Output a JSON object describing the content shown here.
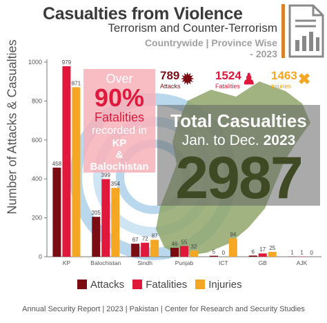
{
  "header": {
    "title": "Casualties from Violence",
    "subtitle": "Terrorism and Counter-Terrorism",
    "scope_line1": "Countrywide | Province Wise",
    "scope_line2": "- 2023"
  },
  "stats": [
    {
      "value": "789",
      "label": "Attacks",
      "color": "#7a0c14"
    },
    {
      "value": "1524",
      "label": "Fatalities",
      "color": "#e0183b"
    },
    {
      "value": "1463",
      "label": "Injuries",
      "color": "#f5a623"
    }
  ],
  "highlight": {
    "line1": "Over",
    "line2": "90%",
    "line3": "Fatalities",
    "line4": "recorded in",
    "line5": "KP",
    "line6": "&",
    "line7": "Balochistan"
  },
  "total": {
    "title": "Total Casualties",
    "period_prefix": "Jan. to Dec.",
    "period_year": "2023",
    "value": "2987"
  },
  "footer": "Annual Security Report | 2023 | Pakistan | Center for Research and Security Studies",
  "colors": {
    "attacks": "#7a0c14",
    "fatalities": "#e0183b",
    "injuries": "#f5a623",
    "map": "#8fa66a"
  },
  "chart_data": {
    "type": "bar",
    "ylabel": "Number of Attacks & Casualties",
    "ylim": [
      0,
      1000
    ],
    "yticks": [
      0,
      200,
      400,
      600,
      800,
      1000
    ],
    "categories": [
      "KP",
      "Balochistan",
      "Sindh",
      "Punjab",
      "ICT",
      "GB",
      "AJK"
    ],
    "series": [
      {
        "name": "Attacks",
        "values": [
          458,
          205,
          67,
          46,
          5,
          6,
          1
        ]
      },
      {
        "name": "Fatalities",
        "values": [
          979,
          399,
          72,
          55,
          0,
          17,
          1
        ]
      },
      {
        "name": "Injuries",
        "values": [
          871,
          354,
          87,
          32,
          94,
          25,
          0
        ]
      }
    ],
    "legend": "bottom"
  }
}
